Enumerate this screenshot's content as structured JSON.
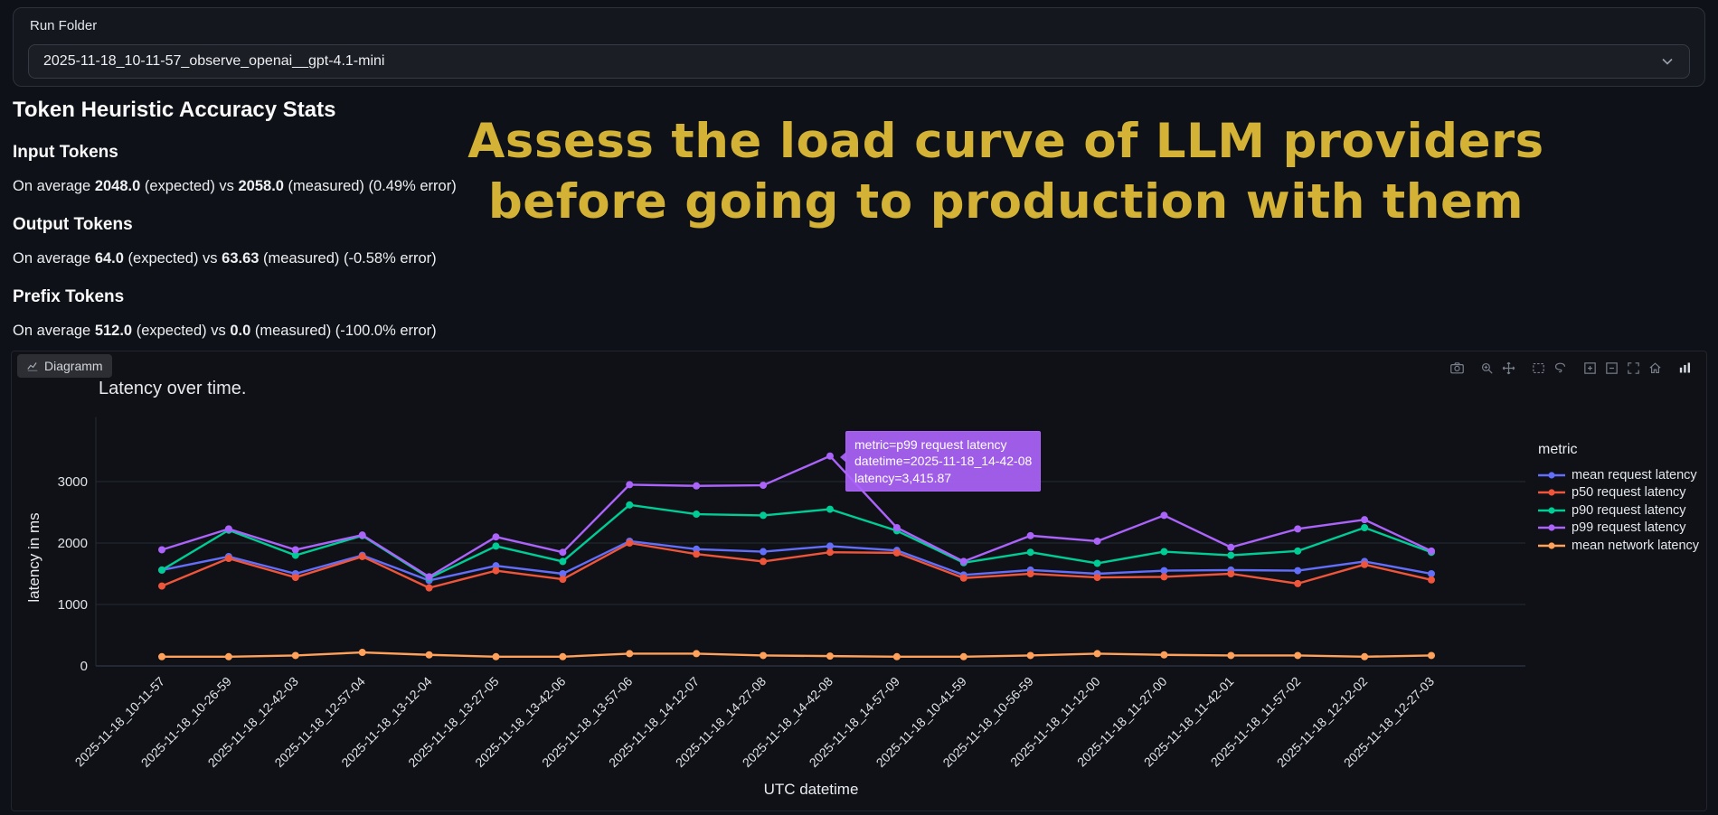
{
  "run_folder": {
    "label": "Run Folder",
    "selected": "2025-11-18_10-11-57_observe_openai__gpt-4.1-mini"
  },
  "stats": {
    "title": "Token Heuristic Accuracy Stats",
    "items": [
      {
        "heading": "Input Tokens",
        "prefix": "On average ",
        "expected": "2048.0",
        "mid": " (expected) vs ",
        "measured": "2058.0",
        "suffix": " (measured) (0.49% error)"
      },
      {
        "heading": "Output Tokens",
        "prefix": "On average ",
        "expected": "64.0",
        "mid": " (expected) vs ",
        "measured": "63.63",
        "suffix": " (measured) (-0.58% error)"
      },
      {
        "heading": "Prefix Tokens",
        "prefix": "On average ",
        "expected": "512.0",
        "mid": " (expected) vs ",
        "measured": "0.0",
        "suffix": " (measured) (-100.0% error)"
      }
    ]
  },
  "headline": {
    "text": "Assess the load curve of LLM providers before going to production with them",
    "color": "#d3b236"
  },
  "chart": {
    "tab_label": "Diagramm",
    "tooltip": {
      "metric": "metric=p99 request latency",
      "datetime": "datetime=2025-11-18_14-42-08",
      "latency": "latency=3,415.87",
      "bg": "#ab63fa"
    },
    "modebar_icons": [
      "camera-icon",
      "zoom-icon",
      "pan-icon",
      "box-select-icon",
      "lasso-select-icon",
      "zoom-in-icon",
      "zoom-out-icon",
      "autoscale-icon",
      "reset-axes-icon",
      "plotly-logo-icon"
    ]
  },
  "chart_data": {
    "type": "line",
    "title": "Latency over time.",
    "xlabel": "UTC datetime",
    "ylabel": "latency in ms",
    "legend_title": "metric",
    "legend_position": "right",
    "grid": true,
    "ylim": [
      0,
      4050
    ],
    "yticks": [
      0,
      1000,
      2000,
      3000
    ],
    "categories": [
      "2025-11-18_10-11-57",
      "2025-11-18_10-26-59",
      "2025-11-18_12-42-03",
      "2025-11-18_12-57-04",
      "2025-11-18_13-12-04",
      "2025-11-18_13-27-05",
      "2025-11-18_13-42-06",
      "2025-11-18_13-57-06",
      "2025-11-18_14-12-07",
      "2025-11-18_14-27-08",
      "2025-11-18_14-42-08",
      "2025-11-18_14-57-09",
      "2025-11-18_10-41-59",
      "2025-11-18_10-56-59",
      "2025-11-18_11-12-00",
      "2025-11-18_11-27-00",
      "2025-11-18_11-42-01",
      "2025-11-18_11-57-02",
      "2025-11-18_12-12-02",
      "2025-11-18_12-27-03"
    ],
    "series": [
      {
        "name": "mean request latency",
        "color": "#636efa",
        "values": [
          1560,
          1780,
          1500,
          1800,
          1390,
          1630,
          1500,
          2030,
          1900,
          1860,
          1950,
          1880,
          1480,
          1560,
          1500,
          1550,
          1560,
          1550,
          1700,
          1500
        ]
      },
      {
        "name": "p50 request latency",
        "color": "#ef553b",
        "values": [
          1300,
          1750,
          1440,
          1780,
          1270,
          1550,
          1410,
          2000,
          1820,
          1700,
          1850,
          1840,
          1430,
          1500,
          1440,
          1450,
          1500,
          1340,
          1650,
          1400
        ]
      },
      {
        "name": "p90 request latency",
        "color": "#00cc96",
        "values": [
          1560,
          2210,
          1800,
          2120,
          1430,
          1950,
          1700,
          2620,
          2470,
          2450,
          2550,
          2200,
          1680,
          1850,
          1670,
          1860,
          1800,
          1870,
          2250,
          1850
        ]
      },
      {
        "name": "p99 request latency",
        "color": "#ab63fa",
        "values": [
          1890,
          2230,
          1890,
          2130,
          1450,
          2100,
          1850,
          2950,
          2930,
          2940,
          3415.87,
          2250,
          1700,
          2120,
          2030,
          2450,
          1930,
          2230,
          2380,
          1870
        ]
      },
      {
        "name": "mean network latency",
        "color": "#ffa15a",
        "values": [
          150,
          150,
          170,
          220,
          180,
          150,
          150,
          200,
          200,
          170,
          160,
          150,
          150,
          170,
          200,
          180,
          170,
          170,
          150,
          170
        ]
      }
    ],
    "annotation": {
      "series": "p99 request latency",
      "index": 10,
      "value": 3415.87
    }
  }
}
